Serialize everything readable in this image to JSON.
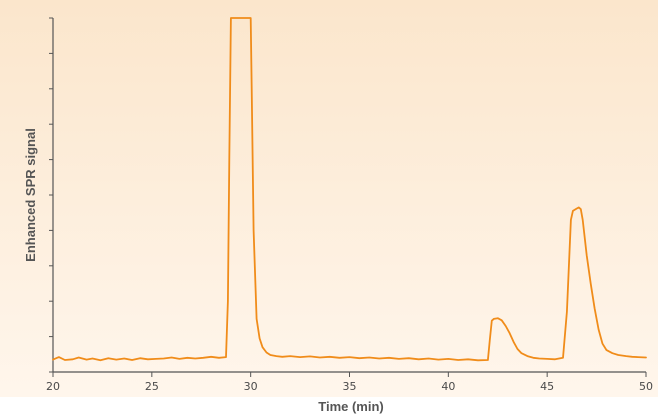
{
  "colors": {
    "background_top": "#fbe6cc",
    "background_bottom": "#fff6ec",
    "trace": "#f08c1a",
    "axis": "#555555"
  },
  "chart_data": {
    "type": "line",
    "title": "",
    "xlabel": "Time (min)",
    "ylabel": "Enhanced SPR signal",
    "xlim": [
      20,
      50
    ],
    "ylim": [
      0,
      100
    ],
    "xticks": [
      20,
      25,
      30,
      35,
      40,
      45,
      50
    ],
    "yticks_count": 11,
    "y_tick_labels_shown": false,
    "grid": false,
    "series": [
      {
        "color": "#f08c1a",
        "x": [
          20.0,
          20.3,
          20.6,
          21.0,
          21.3,
          21.7,
          22.0,
          22.4,
          22.8,
          23.2,
          23.6,
          24.0,
          24.4,
          24.8,
          25.2,
          25.6,
          26.0,
          26.4,
          26.8,
          27.2,
          27.6,
          28.0,
          28.4,
          28.75,
          28.85,
          28.92,
          29.0,
          29.5,
          30.0,
          30.05,
          30.15,
          30.3,
          30.45,
          30.6,
          30.8,
          31.0,
          31.3,
          31.6,
          32.0,
          32.5,
          33.0,
          33.5,
          34.0,
          34.5,
          35.0,
          35.5,
          36.0,
          36.5,
          37.0,
          37.5,
          38.0,
          38.5,
          39.0,
          39.5,
          40.0,
          40.5,
          41.0,
          41.5,
          42.0,
          42.1,
          42.2,
          42.3,
          42.5,
          42.7,
          42.9,
          43.1,
          43.3,
          43.5,
          43.7,
          44.0,
          44.3,
          44.6,
          45.0,
          45.4,
          45.8,
          46.0,
          46.1,
          46.2,
          46.3,
          46.5,
          46.6,
          46.7,
          46.8,
          46.9,
          47.0,
          47.2,
          47.4,
          47.6,
          47.8,
          48.0,
          48.3,
          48.6,
          49.0,
          49.3,
          49.6,
          50.0
        ],
        "y": [
          3.5,
          4.2,
          3.4,
          3.6,
          4.1,
          3.5,
          3.8,
          3.3,
          3.9,
          3.5,
          3.8,
          3.4,
          3.9,
          3.6,
          3.7,
          3.8,
          4.1,
          3.7,
          4.0,
          3.8,
          4.0,
          4.3,
          4.0,
          4.2,
          20.0,
          60.0,
          100.0,
          100.0,
          100.0,
          80.0,
          40.0,
          15.0,
          9.5,
          7.0,
          5.5,
          4.8,
          4.5,
          4.3,
          4.5,
          4.2,
          4.4,
          4.1,
          4.3,
          4.0,
          4.2,
          3.9,
          4.1,
          3.8,
          4.0,
          3.7,
          3.9,
          3.6,
          3.8,
          3.5,
          3.7,
          3.4,
          3.6,
          3.3,
          3.4,
          9.0,
          14.5,
          15.0,
          15.2,
          14.6,
          13.0,
          11.0,
          8.5,
          6.5,
          5.3,
          4.5,
          4.0,
          3.8,
          3.7,
          3.6,
          4.0,
          17.0,
          30.0,
          43.0,
          45.5,
          46.2,
          46.5,
          46.0,
          43.0,
          38.0,
          33.0,
          25.0,
          18.0,
          12.0,
          8.0,
          6.2,
          5.3,
          4.8,
          4.5,
          4.3,
          4.2,
          4.1
        ]
      }
    ]
  }
}
